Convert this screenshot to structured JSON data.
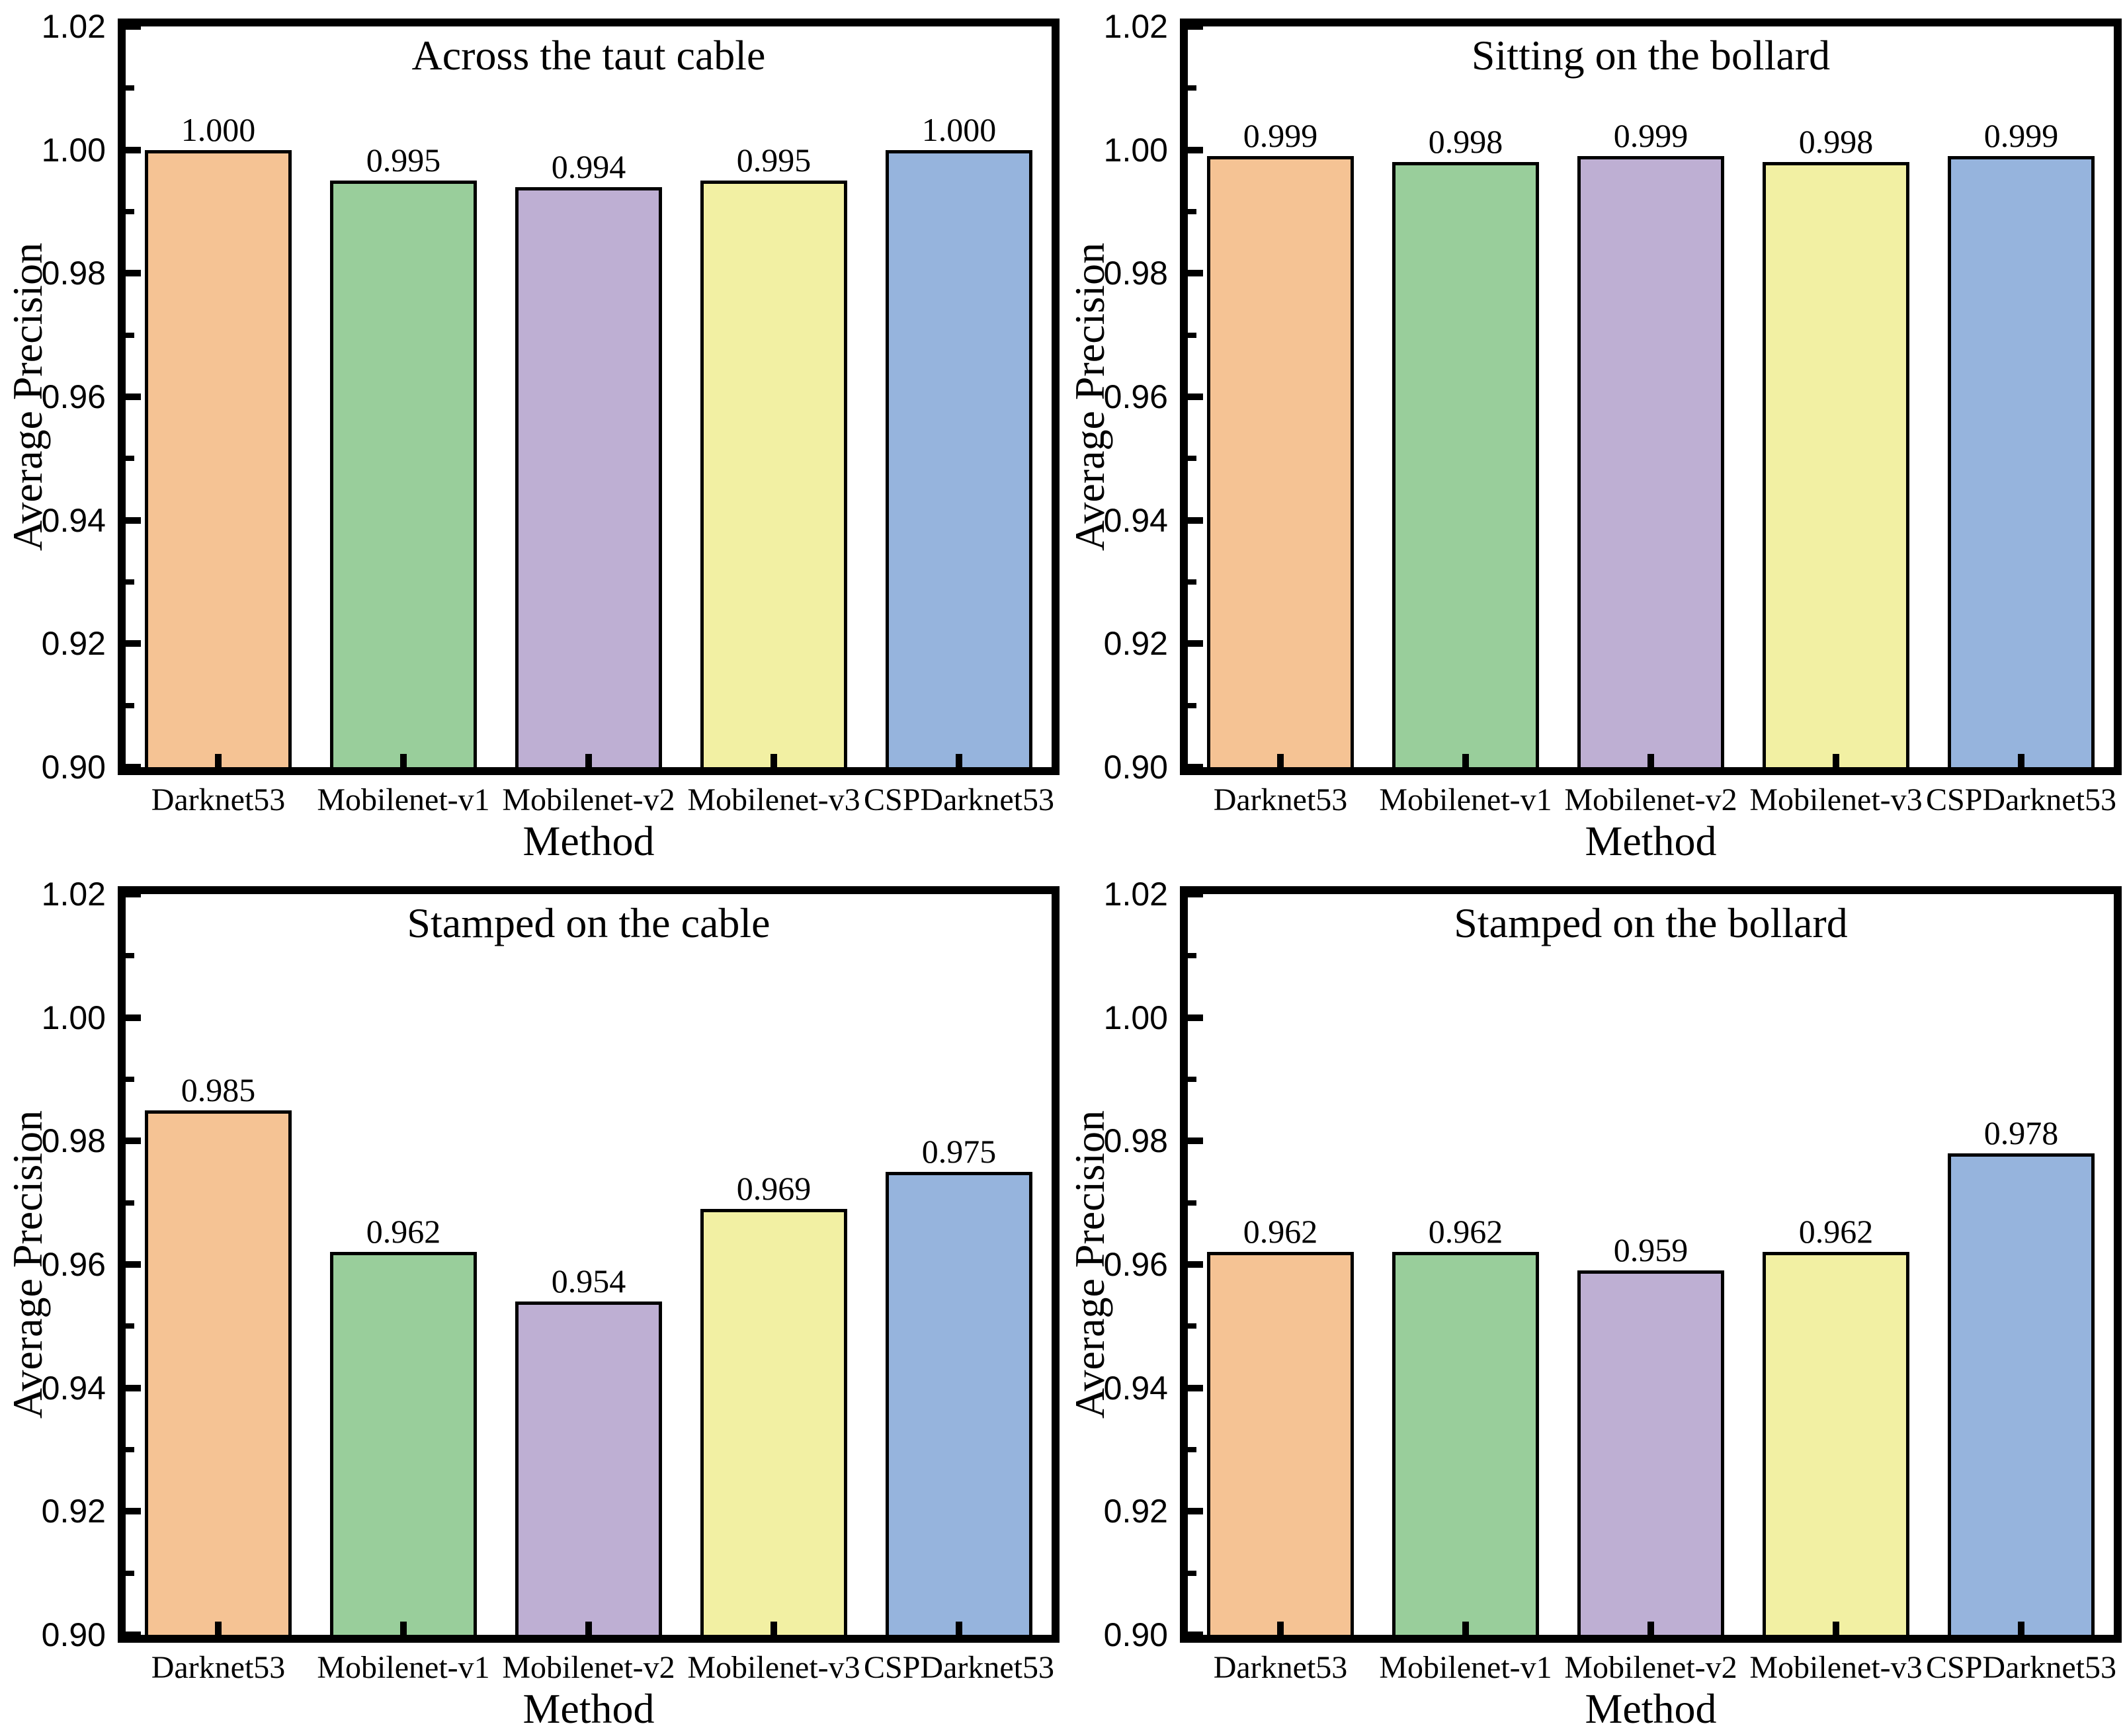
{
  "styles": {
    "background": "#FFFFFF",
    "axis_color": "#000000",
    "bar_edge_color": "#000000"
  },
  "chart_data": [
    {
      "type": "bar",
      "title": "Across the taut cable",
      "xlabel": "Method",
      "ylabel": "Average Precision",
      "categories": [
        "Darknet53",
        "Mobilenet-v1",
        "Mobilenet-v2",
        "Mobilenet-v3",
        "CSPDarknet53"
      ],
      "values": [
        1.0,
        0.995,
        0.994,
        0.995,
        1.0
      ],
      "bar_labels": [
        "1.000",
        "0.995",
        "0.994",
        "0.995",
        "1.000"
      ],
      "ylim": [
        0.9,
        1.02
      ],
      "yticks": [
        0.9,
        0.92,
        0.94,
        0.96,
        0.98,
        1.0,
        1.02
      ],
      "ytick_labels": [
        "0.90",
        "0.92",
        "0.94",
        "0.96",
        "0.98",
        "1.00",
        "1.02"
      ],
      "yticks_minor": [
        0.91,
        0.93,
        0.95,
        0.97,
        0.99,
        1.01
      ],
      "bar_colors": [
        "#F5C394",
        "#99CE9B",
        "#BEAFD3",
        "#F2F0A3",
        "#96B4DD"
      ],
      "grid": false,
      "legend": null
    },
    {
      "type": "bar",
      "title": "Sitting on the bollard",
      "xlabel": "Method",
      "ylabel": "Average Precision",
      "categories": [
        "Darknet53",
        "Mobilenet-v1",
        "Mobilenet-v2",
        "Mobilenet-v3",
        "CSPDarknet53"
      ],
      "values": [
        0.999,
        0.998,
        0.999,
        0.998,
        0.999
      ],
      "bar_labels": [
        "0.999",
        "0.998",
        "0.999",
        "0.998",
        "0.999"
      ],
      "ylim": [
        0.9,
        1.02
      ],
      "yticks": [
        0.9,
        0.92,
        0.94,
        0.96,
        0.98,
        1.0,
        1.02
      ],
      "ytick_labels": [
        "0.90",
        "0.92",
        "0.94",
        "0.96",
        "0.98",
        "1.00",
        "1.02"
      ],
      "yticks_minor": [
        0.91,
        0.93,
        0.95,
        0.97,
        0.99,
        1.01
      ],
      "bar_colors": [
        "#F5C394",
        "#99CE9B",
        "#BEAFD3",
        "#F2F0A3",
        "#96B4DD"
      ],
      "grid": false,
      "legend": null
    },
    {
      "type": "bar",
      "title": "Stamped on the cable",
      "xlabel": "Method",
      "ylabel": "Average Precision",
      "categories": [
        "Darknet53",
        "Mobilenet-v1",
        "Mobilenet-v2",
        "Mobilenet-v3",
        "CSPDarknet53"
      ],
      "values": [
        0.985,
        0.962,
        0.954,
        0.969,
        0.975
      ],
      "bar_labels": [
        "0.985",
        "0.962",
        "0.954",
        "0.969",
        "0.975"
      ],
      "ylim": [
        0.9,
        1.02
      ],
      "yticks": [
        0.9,
        0.92,
        0.94,
        0.96,
        0.98,
        1.0,
        1.02
      ],
      "ytick_labels": [
        "0.90",
        "0.92",
        "0.94",
        "0.96",
        "0.98",
        "1.00",
        "1.02"
      ],
      "yticks_minor": [
        0.91,
        0.93,
        0.95,
        0.97,
        0.99,
        1.01
      ],
      "bar_colors": [
        "#F5C394",
        "#99CE9B",
        "#BEAFD3",
        "#F2F0A3",
        "#96B4DD"
      ],
      "grid": false,
      "legend": null
    },
    {
      "type": "bar",
      "title": "Stamped on the bollard",
      "xlabel": "Method",
      "ylabel": "Average Precision",
      "categories": [
        "Darknet53",
        "Mobilenet-v1",
        "Mobilenet-v2",
        "Mobilenet-v3",
        "CSPDarknet53"
      ],
      "values": [
        0.962,
        0.962,
        0.959,
        0.962,
        0.978
      ],
      "bar_labels": [
        "0.962",
        "0.962",
        "0.959",
        "0.962",
        "0.978"
      ],
      "ylim": [
        0.9,
        1.02
      ],
      "yticks": [
        0.9,
        0.92,
        0.94,
        0.96,
        0.98,
        1.0,
        1.02
      ],
      "ytick_labels": [
        "0.90",
        "0.92",
        "0.94",
        "0.96",
        "0.98",
        "1.00",
        "1.02"
      ],
      "yticks_minor": [
        0.91,
        0.93,
        0.95,
        0.97,
        0.99,
        1.01
      ],
      "bar_colors": [
        "#F5C394",
        "#99CE9B",
        "#BEAFD3",
        "#F2F0A3",
        "#96B4DD"
      ],
      "grid": false,
      "legend": null
    }
  ]
}
